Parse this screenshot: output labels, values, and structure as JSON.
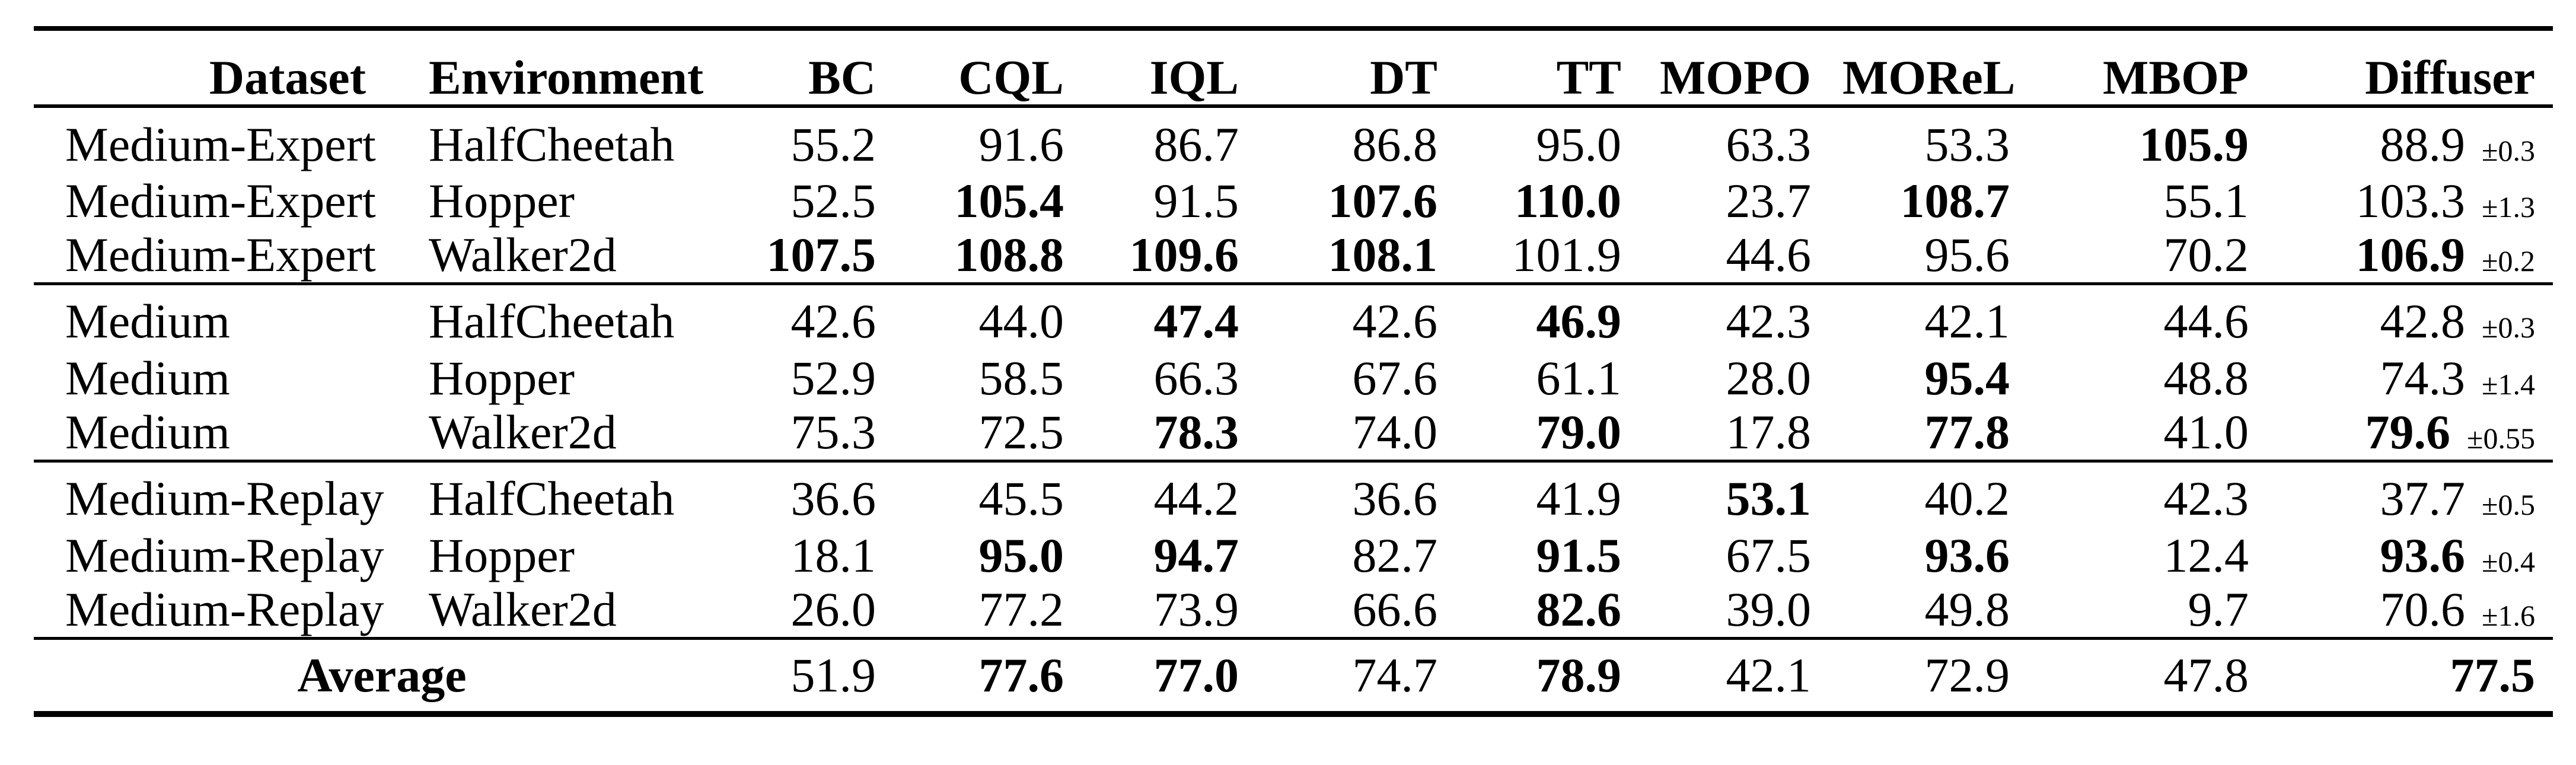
{
  "table": {
    "headers": [
      "Dataset",
      "Environment",
      "BC",
      "CQL",
      "IQL",
      "DT",
      "TT",
      "MOPO",
      "MOReL",
      "MBOP",
      "Diffuser"
    ],
    "groups": [
      {
        "name": "medium-expert",
        "rows": [
          {
            "dataset": "Medium-Expert",
            "environment": "HalfCheetah",
            "scores": [
              {
                "v": "55.2",
                "b": false
              },
              {
                "v": "91.6",
                "b": false
              },
              {
                "v": "86.7",
                "b": false
              },
              {
                "v": "86.8",
                "b": false
              },
              {
                "v": "95.0",
                "b": false
              },
              {
                "v": "63.3",
                "b": false
              },
              {
                "v": "53.3",
                "b": false
              },
              {
                "v": "105.9",
                "b": true
              }
            ],
            "diffuser": {
              "v": "88.9",
              "err": "±0.3",
              "b": false
            }
          },
          {
            "dataset": "Medium-Expert",
            "environment": "Hopper",
            "scores": [
              {
                "v": "52.5",
                "b": false
              },
              {
                "v": "105.4",
                "b": true
              },
              {
                "v": "91.5",
                "b": false
              },
              {
                "v": "107.6",
                "b": true
              },
              {
                "v": "110.0",
                "b": true
              },
              {
                "v": "23.7",
                "b": false
              },
              {
                "v": "108.7",
                "b": true
              },
              {
                "v": "55.1",
                "b": false
              }
            ],
            "diffuser": {
              "v": "103.3",
              "err": "±1.3",
              "b": false
            }
          },
          {
            "dataset": "Medium-Expert",
            "environment": "Walker2d",
            "scores": [
              {
                "v": "107.5",
                "b": true
              },
              {
                "v": "108.8",
                "b": true
              },
              {
                "v": "109.6",
                "b": true
              },
              {
                "v": "108.1",
                "b": true
              },
              {
                "v": "101.9",
                "b": false
              },
              {
                "v": "44.6",
                "b": false
              },
              {
                "v": "95.6",
                "b": false
              },
              {
                "v": "70.2",
                "b": false
              }
            ],
            "diffuser": {
              "v": "106.9",
              "err": "±0.2",
              "b": true
            }
          }
        ]
      },
      {
        "name": "medium",
        "rows": [
          {
            "dataset": "Medium",
            "environment": "HalfCheetah",
            "scores": [
              {
                "v": "42.6",
                "b": false
              },
              {
                "v": "44.0",
                "b": false
              },
              {
                "v": "47.4",
                "b": true
              },
              {
                "v": "42.6",
                "b": false
              },
              {
                "v": "46.9",
                "b": true
              },
              {
                "v": "42.3",
                "b": false
              },
              {
                "v": "42.1",
                "b": false
              },
              {
                "v": "44.6",
                "b": false
              }
            ],
            "diffuser": {
              "v": "42.8",
              "err": "±0.3",
              "b": false
            }
          },
          {
            "dataset": "Medium",
            "environment": "Hopper",
            "scores": [
              {
                "v": "52.9",
                "b": false
              },
              {
                "v": "58.5",
                "b": false
              },
              {
                "v": "66.3",
                "b": false
              },
              {
                "v": "67.6",
                "b": false
              },
              {
                "v": "61.1",
                "b": false
              },
              {
                "v": "28.0",
                "b": false
              },
              {
                "v": "95.4",
                "b": true
              },
              {
                "v": "48.8",
                "b": false
              }
            ],
            "diffuser": {
              "v": "74.3",
              "err": "±1.4",
              "b": false
            }
          },
          {
            "dataset": "Medium",
            "environment": "Walker2d",
            "scores": [
              {
                "v": "75.3",
                "b": false
              },
              {
                "v": "72.5",
                "b": false
              },
              {
                "v": "78.3",
                "b": true
              },
              {
                "v": "74.0",
                "b": false
              },
              {
                "v": "79.0",
                "b": true
              },
              {
                "v": "17.8",
                "b": false
              },
              {
                "v": "77.8",
                "b": true
              },
              {
                "v": "41.0",
                "b": false
              }
            ],
            "diffuser": {
              "v": "79.6",
              "err": "±0.55",
              "b": true
            }
          }
        ]
      },
      {
        "name": "medium-replay",
        "rows": [
          {
            "dataset": "Medium-Replay",
            "environment": "HalfCheetah",
            "scores": [
              {
                "v": "36.6",
                "b": false
              },
              {
                "v": "45.5",
                "b": false
              },
              {
                "v": "44.2",
                "b": false
              },
              {
                "v": "36.6",
                "b": false
              },
              {
                "v": "41.9",
                "b": false
              },
              {
                "v": "53.1",
                "b": true
              },
              {
                "v": "40.2",
                "b": false
              },
              {
                "v": "42.3",
                "b": false
              }
            ],
            "diffuser": {
              "v": "37.7",
              "err": "±0.5",
              "b": false
            }
          },
          {
            "dataset": "Medium-Replay",
            "environment": "Hopper",
            "scores": [
              {
                "v": "18.1",
                "b": false
              },
              {
                "v": "95.0",
                "b": true
              },
              {
                "v": "94.7",
                "b": true
              },
              {
                "v": "82.7",
                "b": false
              },
              {
                "v": "91.5",
                "b": true
              },
              {
                "v": "67.5",
                "b": false
              },
              {
                "v": "93.6",
                "b": true
              },
              {
                "v": "12.4",
                "b": false
              }
            ],
            "diffuser": {
              "v": "93.6",
              "err": "±0.4",
              "b": true
            }
          },
          {
            "dataset": "Medium-Replay",
            "environment": "Walker2d",
            "scores": [
              {
                "v": "26.0",
                "b": false
              },
              {
                "v": "77.2",
                "b": false
              },
              {
                "v": "73.9",
                "b": false
              },
              {
                "v": "66.6",
                "b": false
              },
              {
                "v": "82.6",
                "b": true
              },
              {
                "v": "39.0",
                "b": false
              },
              {
                "v": "49.8",
                "b": false
              },
              {
                "v": "9.7",
                "b": false
              }
            ],
            "diffuser": {
              "v": "70.6",
              "err": "±1.6",
              "b": false
            }
          }
        ]
      }
    ],
    "average": {
      "label": "Average",
      "scores": [
        {
          "v": "51.9",
          "b": false
        },
        {
          "v": "77.6",
          "b": true
        },
        {
          "v": "77.0",
          "b": true
        },
        {
          "v": "74.7",
          "b": false
        },
        {
          "v": "78.9",
          "b": true
        },
        {
          "v": "42.1",
          "b": false
        },
        {
          "v": "72.9",
          "b": false
        },
        {
          "v": "47.8",
          "b": false
        }
      ],
      "diffuser": {
        "v": "77.5",
        "err": "",
        "b": true
      }
    }
  }
}
